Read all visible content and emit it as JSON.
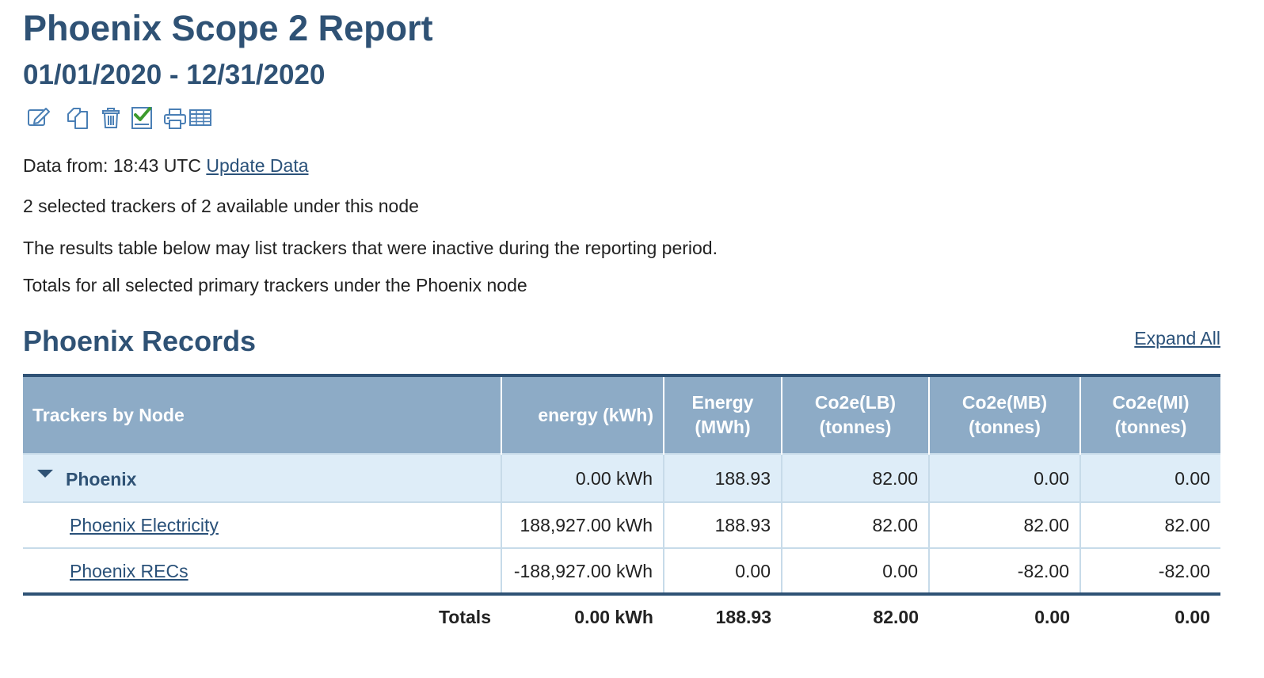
{
  "report": {
    "title": "Phoenix Scope 2 Report",
    "date_range": "01/01/2020 - 12/31/2020"
  },
  "toolbar": {
    "icons": [
      "edit-icon",
      "copy-icon",
      "delete-icon",
      "checklist-icon",
      "print-icon",
      "table-icon"
    ]
  },
  "data_info": {
    "label": "Data from: 18:43 UTC",
    "update_link": "Update Data"
  },
  "selection_text": "2 selected trackers of 2 available under this node",
  "inactive_note": "The results table below may list trackers that were inactive during the reporting period.",
  "totals_note": "Totals for all selected primary trackers under the Phoenix node",
  "records": {
    "title": "Phoenix Records",
    "expand_all": "Expand All",
    "headers": {
      "trackers": "Trackers by Node",
      "energy_kwh": "energy (kWh)",
      "energy_mwh": "Energy (MWh)",
      "co2e_lb": "Co2e(LB) (tonnes)",
      "co2e_mb": "Co2e(MB) (tonnes)",
      "co2e_mi": "Co2e(MI) (tonnes)"
    },
    "node": {
      "name": "Phoenix",
      "energy_kwh": "0.00 kWh",
      "energy_mwh": "188.93",
      "co2e_lb": "82.00",
      "co2e_mb": "0.00",
      "co2e_mi": "0.00"
    },
    "rows": [
      {
        "name": "Phoenix Electricity",
        "energy_kwh": "188,927.00 kWh",
        "energy_mwh": "188.93",
        "co2e_lb": "82.00",
        "co2e_mb": "82.00",
        "co2e_mi": "82.00"
      },
      {
        "name": "Phoenix RECs",
        "energy_kwh": "-188,927.00 kWh",
        "energy_mwh": "0.00",
        "co2e_lb": "0.00",
        "co2e_mb": "-82.00",
        "co2e_mi": "-82.00"
      }
    ],
    "totals": {
      "label": "Totals",
      "energy_kwh": "0.00 kWh",
      "energy_mwh": "188.93",
      "co2e_lb": "82.00",
      "co2e_mb": "0.00",
      "co2e_mi": "0.00"
    }
  },
  "colors": {
    "heading": "#2f5275",
    "table_header_bg": "#8dabc6",
    "node_row_bg": "#deedf8",
    "link": "#2a5179",
    "icon_blue": "#4a7fb5",
    "check_green": "#3c9a2c"
  }
}
